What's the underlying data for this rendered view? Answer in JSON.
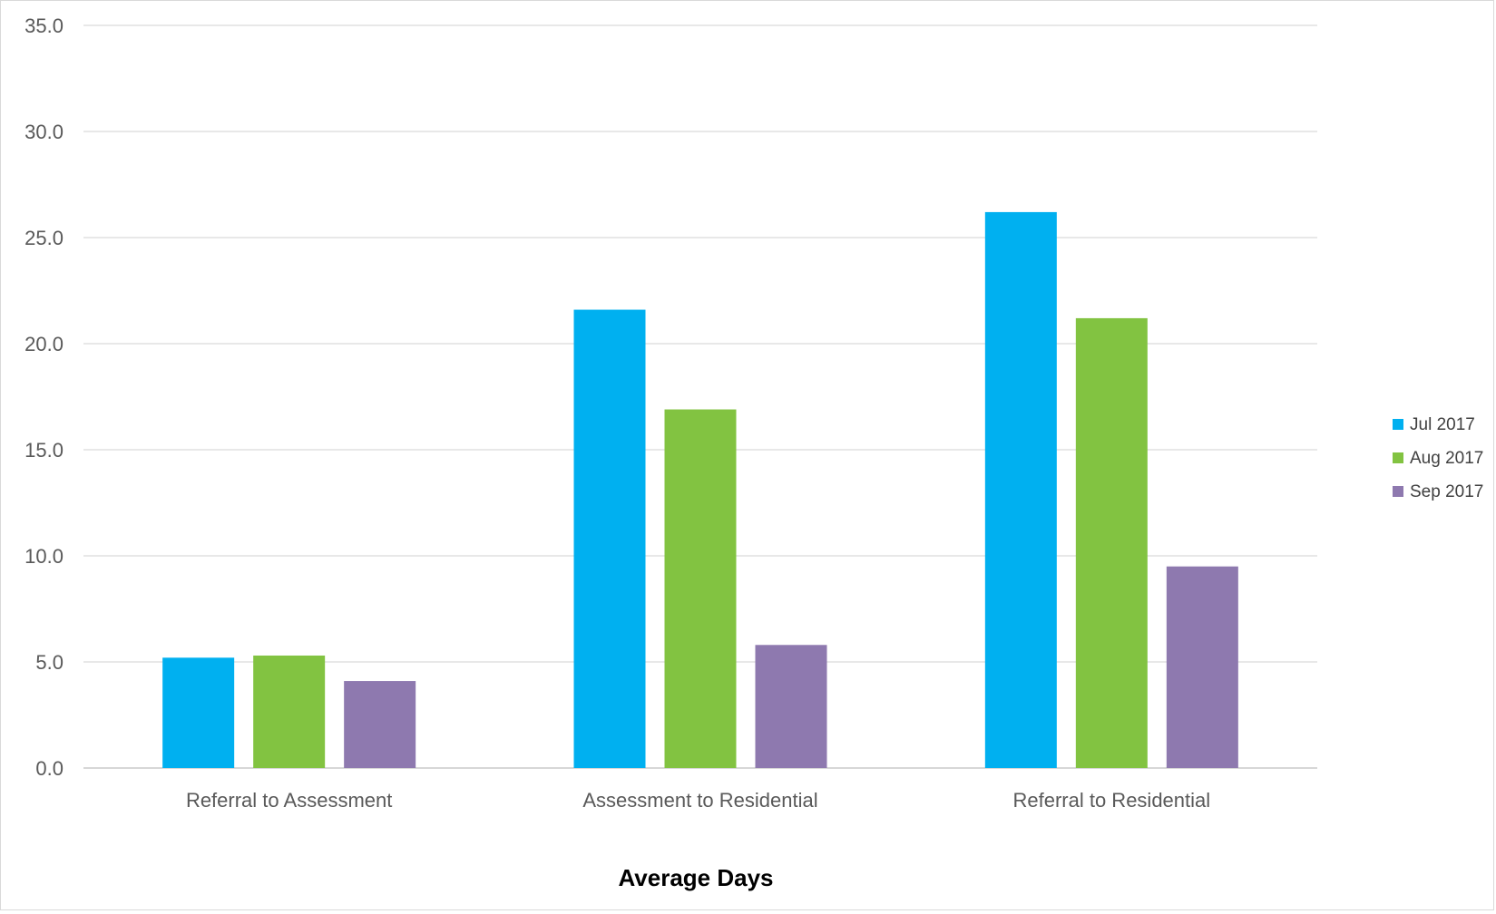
{
  "chart_data": {
    "type": "bar",
    "title": "",
    "xlabel": "Average Days",
    "ylabel": "",
    "ylim": [
      0,
      35
    ],
    "yticks": [
      "0.0",
      "5.0",
      "10.0",
      "15.0",
      "20.0",
      "25.0",
      "30.0",
      "35.0"
    ],
    "categories": [
      "Referral to Assessment",
      "Assessment to Residential",
      "Referral to Residential"
    ],
    "series": [
      {
        "name": "Jul 2017",
        "color": "#00b0f0",
        "values": [
          5.2,
          21.6,
          26.2
        ]
      },
      {
        "name": "Aug 2017",
        "color": "#82c341",
        "values": [
          5.3,
          16.9,
          21.2
        ]
      },
      {
        "name": "Sep 2017",
        "color": "#8e79af",
        "values": [
          4.1,
          5.8,
          9.5
        ]
      }
    ],
    "grid": true,
    "legend_position": "right"
  }
}
